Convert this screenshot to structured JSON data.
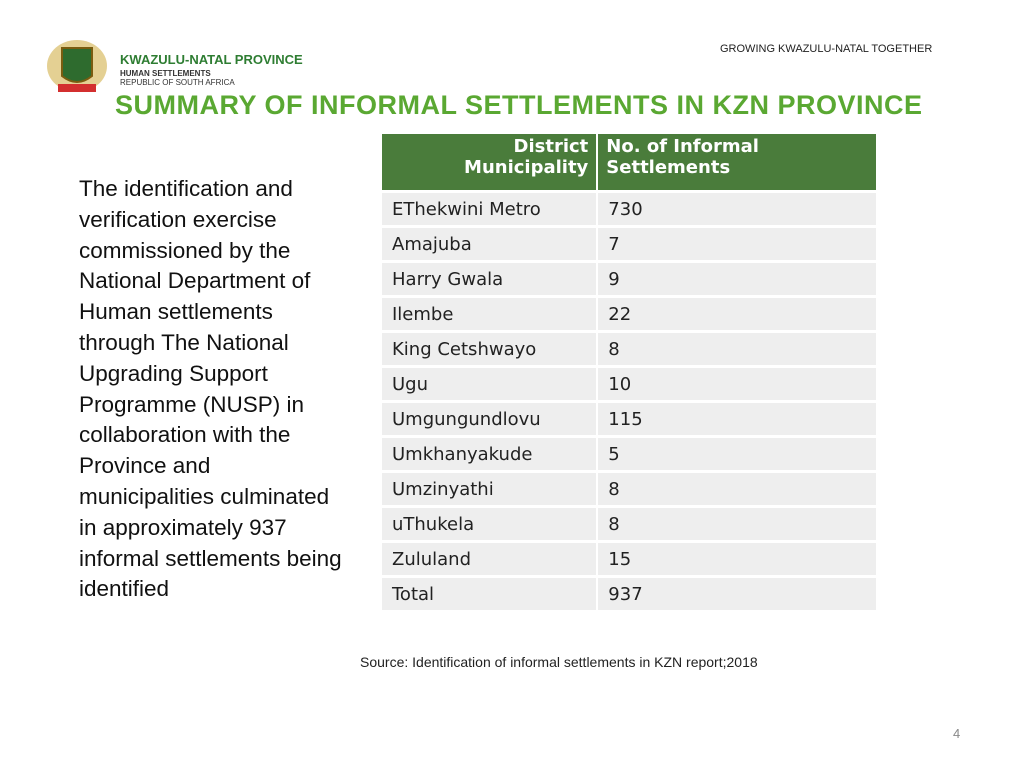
{
  "header": {
    "tagline": "GROWING KWAZULU-NATAL TOGETHER",
    "province": "KWAZULU-NATAL PROVINCE",
    "department": "HUMAN SETTLEMENTS",
    "country": "REPUBLIC OF SOUTH AFRICA",
    "title": "SUMMARY OF INFORMAL SETTLEMENTS IN KZN PROVINCE"
  },
  "paragraph": "The identification and verification exercise commissioned by the National Department of Human settlements through The National Upgrading Support Programme (NUSP) in collaboration with the Province and municipalities culminated in approximately 937 informal settlements being identified",
  "table": {
    "columns": [
      "District Municipality",
      "No. of Informal Settlements"
    ],
    "rows": [
      [
        "EThekwini Metro",
        "730"
      ],
      [
        "Amajuba",
        "7"
      ],
      [
        "Harry Gwala",
        "9"
      ],
      [
        "Ilembe",
        "22"
      ],
      [
        "King Cetshwayo",
        "8"
      ],
      [
        "Ugu",
        "10"
      ],
      [
        "Umgungundlovu",
        "115"
      ],
      [
        "Umkhanyakude",
        "5"
      ],
      [
        "Umzinyathi",
        "8"
      ],
      [
        "uThukela",
        "8"
      ],
      [
        "Zululand",
        "15"
      ],
      [
        "Total",
        "937"
      ]
    ]
  },
  "footer": {
    "source": "Source: Identification of informal settlements in KZN report;2018",
    "page": "4"
  }
}
